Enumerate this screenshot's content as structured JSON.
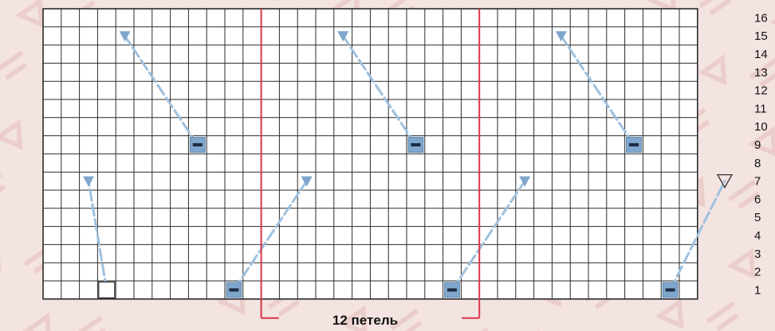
{
  "pattern": {
    "columns": 36,
    "rows": 16,
    "repeat_label": "12 петель",
    "row_numbers": [
      "16",
      "15",
      "14",
      "13",
      "12",
      "11",
      "10",
      "9",
      "8",
      "7",
      "6",
      "5",
      "4",
      "3",
      "2",
      "1"
    ],
    "repeat_columns": [
      12,
      24
    ],
    "grid_color": "#2a2a2a",
    "grid_fill": "#ffffff",
    "repeat_color": "#d8364a",
    "stitch_fill": "#7fa6cc",
    "stitch_dash": "#1c2c44",
    "cable_color": "#9ec0de",
    "purl_cells": [
      {
        "col": 9,
        "row": 9
      },
      {
        "col": 21,
        "row": 9
      },
      {
        "col": 33,
        "row": 9
      },
      {
        "col": 11,
        "row": 1
      },
      {
        "col": 23,
        "row": 1
      },
      {
        "col": 35,
        "row": 1
      }
    ],
    "cables": [
      {
        "from": {
          "col": 4,
          "row": 1
        },
        "to": {
          "col": 3,
          "row": 7
        },
        "start": "empty-square-icon",
        "end": "filled-triangle-icon"
      },
      {
        "from": {
          "col": 9,
          "row": 9
        },
        "to": {
          "col": 5,
          "row": 15
        },
        "start": "purl",
        "end": "filled-triangle-icon"
      },
      {
        "from": {
          "col": 11,
          "row": 1
        },
        "to": {
          "col": 15,
          "row": 7
        },
        "start": "purl",
        "end": "filled-triangle-icon"
      },
      {
        "from": {
          "col": 21,
          "row": 9
        },
        "to": {
          "col": 17,
          "row": 15
        },
        "start": "purl",
        "end": "filled-triangle-icon"
      },
      {
        "from": {
          "col": 23,
          "row": 1
        },
        "to": {
          "col": 27,
          "row": 7
        },
        "start": "purl",
        "end": "filled-triangle-icon"
      },
      {
        "from": {
          "col": 33,
          "row": 9
        },
        "to": {
          "col": 29,
          "row": 15
        },
        "start": "purl",
        "end": "filled-triangle-icon"
      },
      {
        "from": {
          "col": 35,
          "row": 1
        },
        "to": {
          "col": 38,
          "row": 7
        },
        "start": "purl",
        "end": "empty-triangle-icon"
      }
    ]
  }
}
